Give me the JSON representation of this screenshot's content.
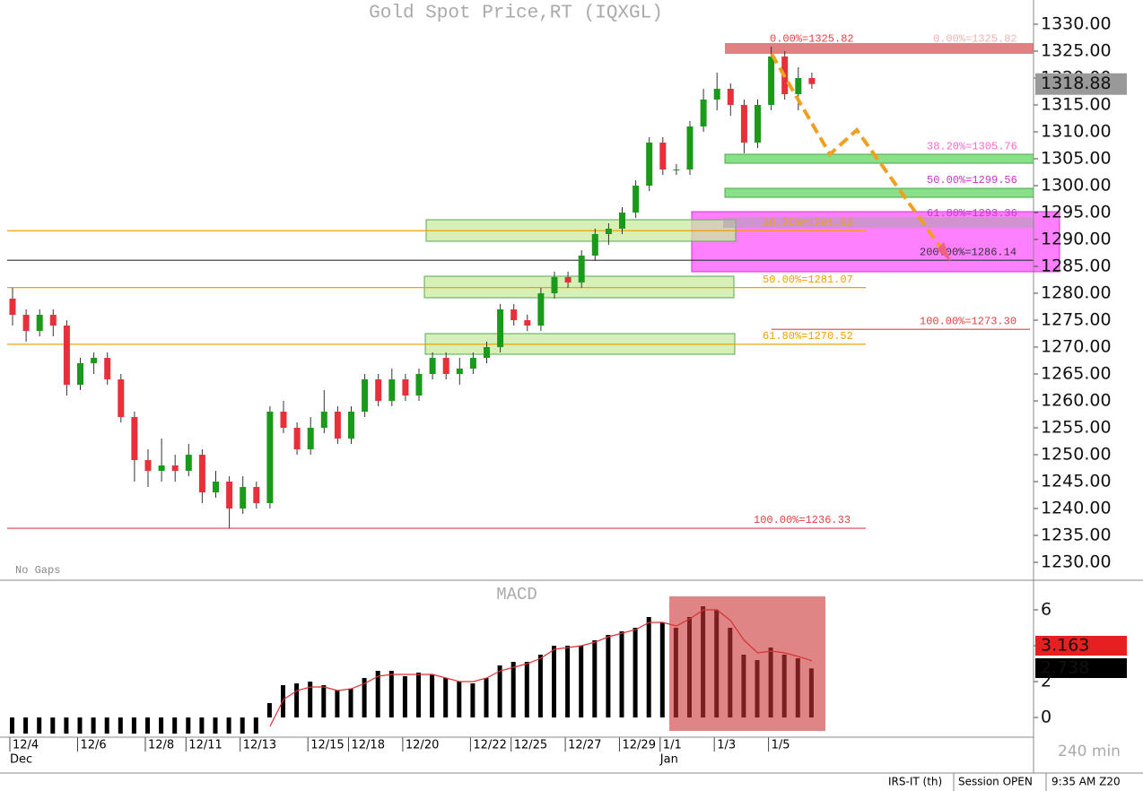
{
  "chart_data": [
    {
      "type": "candlestick",
      "title": "Gold Spot Price,RT (IQXGL)",
      "categories": [
        "12/4",
        null,
        null,
        null,
        null,
        "12/6",
        null,
        null,
        null,
        null,
        "12/8",
        null,
        null,
        "12/11",
        null,
        null,
        null,
        "12/13",
        null,
        null,
        null,
        null,
        "12/15",
        null,
        null,
        "12/18",
        null,
        null,
        null,
        "12/20",
        null,
        null,
        null,
        null,
        "12/22",
        null,
        null,
        "12/25",
        null,
        null,
        null,
        "12/27",
        null,
        null,
        null,
        "12/29",
        null,
        null,
        "1/1",
        null,
        null,
        null,
        "1/3",
        null,
        null,
        null,
        "1/5",
        null,
        null,
        null
      ],
      "months": [
        "Dec",
        null,
        null,
        null,
        null,
        null,
        null,
        null,
        null,
        null,
        null,
        null,
        null,
        null,
        null,
        null,
        null,
        null,
        null,
        null,
        null,
        null,
        null,
        null,
        null,
        null,
        null,
        null,
        null,
        null,
        null,
        null,
        null,
        null,
        null,
        null,
        null,
        null,
        null,
        null,
        null,
        null,
        null,
        null,
        null,
        null,
        null,
        null,
        "Jan",
        null,
        null,
        null,
        null,
        null,
        null,
        null,
        null,
        null,
        null,
        null
      ],
      "open": [
        1279,
        1276,
        1273,
        1276,
        1274,
        1263,
        1267,
        1268,
        1264,
        1257,
        1249,
        1247,
        1248,
        1247,
        1250,
        1243,
        1245,
        1240,
        1244,
        1241,
        1258,
        1255,
        1251,
        1255,
        1258,
        1253,
        1258,
        1264,
        1260,
        1264,
        1261,
        1265,
        1268,
        1265,
        1266,
        1268,
        1270,
        1277,
        1275,
        1274,
        1280,
        1283,
        1282,
        1287,
        1291,
        1292,
        1295,
        1300,
        1308,
        1303,
        1303,
        1311,
        1316,
        1318,
        1315,
        1308,
        1315,
        1324,
        1317,
        1320
      ],
      "high": [
        1281,
        1277,
        1277,
        1277,
        1275,
        1268,
        1269,
        1269,
        1265,
        1258,
        1251,
        1253,
        1250,
        1252,
        1251,
        1247,
        1246,
        1246,
        1245,
        1259,
        1260,
        1256,
        1257,
        1262,
        1259,
        1259,
        1265,
        1265,
        1266,
        1265,
        1266,
        1269,
        1269,
        1268,
        1269,
        1271,
        1278,
        1278,
        1276,
        1281,
        1284,
        1284,
        1288,
        1292,
        1293,
        1296,
        1301,
        1309,
        1309,
        1304,
        1312,
        1318,
        1321,
        1319,
        1316,
        1316,
        1325.82,
        1325,
        1322,
        1321
      ],
      "low": [
        1274,
        1271,
        1272,
        1272,
        1261,
        1262,
        1265,
        1263,
        1256,
        1245,
        1244,
        1245,
        1245,
        1246,
        1241,
        1242,
        1236.33,
        1239,
        1240,
        1240,
        1254,
        1250,
        1250,
        1254,
        1252,
        1252,
        1257,
        1259,
        1259,
        1260,
        1260,
        1264,
        1264,
        1263,
        1265,
        1267,
        1269,
        1274,
        1273,
        1273,
        1279,
        1281,
        1281,
        1286,
        1289,
        1291,
        1294,
        1299,
        1302,
        1302,
        1302,
        1310,
        1314,
        1313,
        1306,
        1307,
        1314,
        1316,
        1314,
        1318
      ],
      "close": [
        1276,
        1273,
        1276,
        1274,
        1263,
        1267,
        1268,
        1264,
        1257,
        1249,
        1247,
        1248,
        1247,
        1250,
        1243,
        1245,
        1240,
        1244,
        1241,
        1258,
        1255,
        1251,
        1255,
        1258,
        1253,
        1258,
        1264,
        1260,
        1264,
        1261,
        1265,
        1268,
        1265,
        1266,
        1268,
        1270,
        1277,
        1275,
        1274,
        1280,
        1283,
        1282,
        1287,
        1291,
        1292,
        1295,
        1300,
        1308,
        1303,
        1303,
        1311,
        1316,
        1318,
        1315,
        1308,
        1315,
        1324,
        1317,
        1320,
        1318.88
      ],
      "up_color": "#1a9a1a",
      "down_color": "#e8303a",
      "last_price": 1318.88,
      "ylim": [
        1226.67,
        1334.5
      ],
      "yticks": [
        {
          "value": 1230,
          "label": "1230.00"
        },
        {
          "value": 1235,
          "label": "1235.00"
        },
        {
          "value": 1240,
          "label": "1240.00"
        },
        {
          "value": 1245,
          "label": "1245.00"
        },
        {
          "value": 1250,
          "label": "1250.00"
        },
        {
          "value": 1255,
          "label": "1255.00"
        },
        {
          "value": 1260,
          "label": "1260.00"
        },
        {
          "value": 1265,
          "label": "1265.00"
        },
        {
          "value": 1270,
          "label": "1270.00"
        },
        {
          "value": 1275,
          "label": "1275.00"
        },
        {
          "value": 1280,
          "label": "1280.00"
        },
        {
          "value": 1285,
          "label": "1285.00"
        },
        {
          "value": 1290,
          "label": "1290.00"
        },
        {
          "value": 1295,
          "label": "1295.00"
        },
        {
          "value": 1300,
          "label": "1300.00"
        },
        {
          "value": 1305,
          "label": "1305.00"
        },
        {
          "value": 1310,
          "label": "1310.00"
        },
        {
          "value": 1315,
          "label": "1315.00"
        },
        {
          "value": 1320,
          "label": "1320.00"
        },
        {
          "value": 1325,
          "label": "1325.00"
        },
        {
          "value": 1330,
          "label": "1330.00"
        }
      ],
      "levels": [
        {
          "label": "0.00%=1325.82",
          "value": 1325.82,
          "color": "#e04040"
        },
        {
          "label": "38.20%=1291.63",
          "value": 1291.63,
          "color": "#f0a000"
        },
        {
          "label": "50.00%=1281.07",
          "value": 1281.07,
          "color": "#f0a000"
        },
        {
          "label": "61.80%=1270.52",
          "value": 1270.52,
          "color": "#f0a000"
        },
        {
          "label": "100.00%=1236.33",
          "value": 1236.33,
          "color": "#e04040"
        },
        {
          "label": "0.00%=1325.82",
          "value": 1325.82,
          "color": "#f2b0b0"
        },
        {
          "label": "38.20%=1305.76",
          "value": 1305.76,
          "color": "#ff66cc"
        },
        {
          "label": "50.00%=1299.56",
          "value": 1299.56,
          "color": "#cc33cc"
        },
        {
          "label": "61.80%=1293.36",
          "value": 1293.36,
          "color": "#cc33cc"
        },
        {
          "label": "200.00%=1286.14",
          "value": 1286.14,
          "color": "#333333"
        },
        {
          "label": "100.00%=1273.30",
          "value": 1273.3,
          "color": "#e04040"
        }
      ],
      "note": "No Gaps"
    },
    {
      "type": "macd",
      "title": "MACD",
      "histogram": [
        -0.9,
        -0.9,
        -0.9,
        -0.9,
        -0.9,
        -0.9,
        -0.9,
        -0.9,
        -0.9,
        -0.9,
        -0.9,
        -0.9,
        -0.9,
        -0.9,
        -0.9,
        -0.9,
        -0.9,
        -0.9,
        -0.9,
        0.8,
        1.8,
        1.9,
        2.0,
        1.8,
        1.5,
        1.6,
        2.2,
        2.6,
        2.6,
        2.3,
        2.5,
        2.4,
        2.2,
        2.0,
        1.9,
        2.2,
        2.9,
        3.1,
        3.1,
        3.5,
        4.0,
        4.0,
        4.0,
        4.3,
        4.6,
        4.8,
        5.0,
        5.6,
        5.3,
        5.0,
        5.6,
        6.2,
        6.0,
        5.0,
        3.5,
        3.2,
        3.9,
        3.5,
        3.3,
        2.738
      ],
      "signal": [
        null,
        null,
        null,
        null,
        null,
        null,
        null,
        null,
        null,
        null,
        null,
        null,
        null,
        null,
        null,
        null,
        null,
        null,
        null,
        -0.5,
        1.0,
        1.5,
        1.7,
        1.7,
        1.5,
        1.6,
        1.9,
        2.3,
        2.4,
        2.4,
        2.4,
        2.4,
        2.2,
        2.0,
        2.0,
        2.2,
        2.6,
        2.8,
        3.0,
        3.3,
        3.8,
        3.9,
        4.0,
        4.2,
        4.5,
        4.7,
        4.9,
        5.3,
        5.3,
        5.1,
        5.5,
        6.0,
        6.0,
        5.4,
        4.3,
        3.6,
        3.7,
        3.6,
        3.4,
        3.163
      ],
      "histogram_color": "#000000",
      "signal_color": "#e03030",
      "ylim": [
        -1,
        7.5
      ],
      "yticks": [
        0,
        2,
        4,
        6
      ],
      "interval": "240 min"
    }
  ],
  "status": [
    "IRS-IT (th)",
    "Session OPEN",
    "9:35 AM Z20"
  ]
}
